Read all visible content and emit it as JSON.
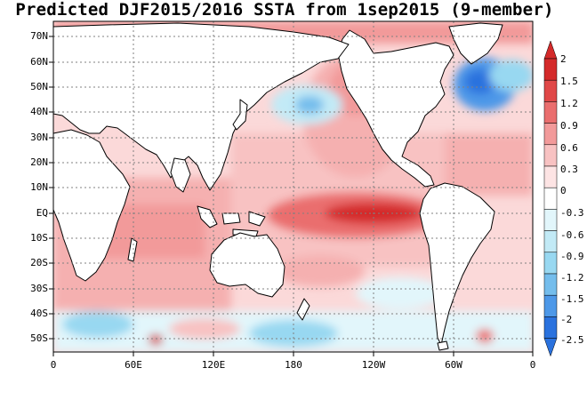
{
  "title": "Predicted DJF2015/2016 SSTA from 1sep2015 (9-member)",
  "lat_labels": [
    "70N",
    "60N",
    "50N",
    "40N",
    "30N",
    "20N",
    "10N",
    "EQ",
    "10S",
    "20S",
    "30S",
    "40S",
    "50S"
  ],
  "lon_labels": [
    "0",
    "60E",
    "120E",
    "180",
    "120W",
    "60W",
    "0"
  ],
  "colorbar": {
    "labels": [
      "2",
      "1.5",
      "1.2",
      "0.9",
      "0.6",
      "0.3",
      "0",
      "-0.3",
      "-0.6",
      "-0.9",
      "-1.2",
      "-1.5",
      "-2",
      "-2.5"
    ],
    "colors": [
      "#d42a2a",
      "#e04848",
      "#ea6e6e",
      "#f29a9a",
      "#f8c2c2",
      "#fde4e4",
      "#ffffff",
      "#e2f6fb",
      "#c2eaf6",
      "#98d8f1",
      "#74bdec",
      "#4d98e8",
      "#2a72de"
    ]
  },
  "palette": {
    "land": "#ffffff",
    "coast": "#000000",
    "grid": "#808080"
  }
}
